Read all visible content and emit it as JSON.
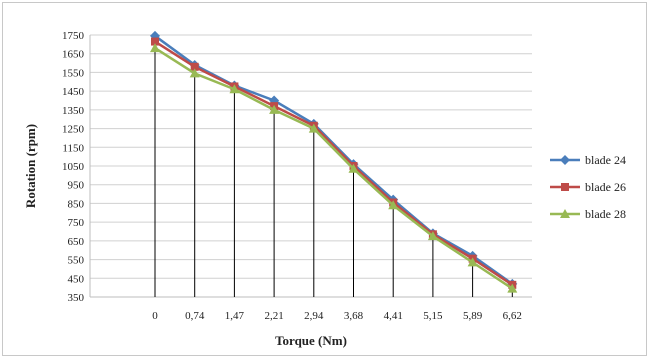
{
  "chart_data": {
    "type": "line",
    "xlabel": "Torque (Nm)",
    "ylabel": "Rotation (rpm)",
    "categories": [
      "0",
      "0,74",
      "1,47",
      "2,21",
      "2,94",
      "3,68",
      "4,41",
      "5,15",
      "5,89",
      "6,62"
    ],
    "ylim": [
      350,
      1750
    ],
    "yticks": [
      1750,
      1650,
      1550,
      1450,
      1350,
      1250,
      1150,
      1050,
      950,
      850,
      750,
      650,
      550,
      450,
      350
    ],
    "grid": true,
    "legend_position": "right",
    "series": [
      {
        "name": "blade 24",
        "color": "#4a7ebb",
        "marker": "diamond",
        "values": [
          1745,
          1590,
          1480,
          1400,
          1275,
          1060,
          870,
          690,
          570,
          420
        ]
      },
      {
        "name": "blade 26",
        "color": "#be4b48",
        "marker": "square",
        "values": [
          1715,
          1580,
          1475,
          1370,
          1265,
          1050,
          855,
          685,
          555,
          415
        ]
      },
      {
        "name": "blade 28",
        "color": "#98b954",
        "marker": "triangle",
        "values": [
          1680,
          1545,
          1460,
          1350,
          1250,
          1035,
          840,
          675,
          535,
          395
        ]
      }
    ]
  }
}
